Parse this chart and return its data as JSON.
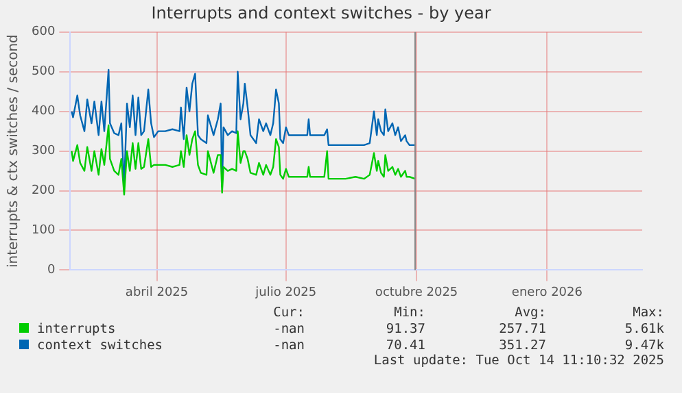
{
  "chart_data": {
    "type": "line",
    "title": "Interrupts and context switches - by year",
    "ylabel": "interrupts & ctx switches / second",
    "x": [
      "2025-02-14",
      "2025-02-15",
      "2025-02-18",
      "2025-02-20",
      "2025-02-23",
      "2025-02-25",
      "2025-02-28",
      "2025-03-02",
      "2025-03-05",
      "2025-03-07",
      "2025-03-09",
      "2025-03-12",
      "2025-03-13",
      "2025-03-16",
      "2025-03-19",
      "2025-03-21",
      "2025-03-23",
      "2025-03-25",
      "2025-03-27",
      "2025-03-29",
      "2025-03-31",
      "2025-04-02",
      "2025-04-04",
      "2025-04-06",
      "2025-04-09",
      "2025-04-11",
      "2025-04-13",
      "2025-04-16",
      "2025-04-21",
      "2025-04-26",
      "2025-05-01",
      "2025-05-02",
      "2025-05-04",
      "2025-05-06",
      "2025-05-08",
      "2025-05-10",
      "2025-05-12",
      "2025-05-14",
      "2025-05-16",
      "2025-05-20",
      "2025-05-21",
      "2025-05-25",
      "2025-05-28",
      "2025-05-30",
      "2025-05-31",
      "2025-06-01",
      "2025-06-04",
      "2025-06-07",
      "2025-06-10",
      "2025-06-11",
      "2025-06-13",
      "2025-06-15",
      "2025-06-16",
      "2025-06-18",
      "2025-06-20",
      "2025-06-24",
      "2025-06-26",
      "2025-06-29",
      "2025-07-01",
      "2025-07-04",
      "2025-07-06",
      "2025-07-08",
      "2025-07-10",
      "2025-07-11",
      "2025-07-13",
      "2025-07-15",
      "2025-07-17",
      "2025-07-24",
      "2025-07-30",
      "2025-07-31",
      "2025-08-01",
      "2025-08-11",
      "2025-08-13",
      "2025-08-14",
      "2025-08-26",
      "2025-09-02",
      "2025-09-08",
      "2025-09-12",
      "2025-09-15",
      "2025-09-17",
      "2025-09-18",
      "2025-09-20",
      "2025-09-22",
      "2025-09-23",
      "2025-09-25",
      "2025-09-28",
      "2025-09-30",
      "2025-10-02",
      "2025-10-04",
      "2025-10-07",
      "2025-10-08",
      "2025-10-10",
      "2025-10-14"
    ],
    "series": [
      {
        "name": "interrupts",
        "color": "#00cc00",
        "values": [
          300,
          275,
          315,
          270,
          250,
          310,
          250,
          300,
          240,
          305,
          265,
          365,
          280,
          250,
          240,
          280,
          190,
          300,
          250,
          320,
          255,
          320,
          255,
          260,
          330,
          260,
          265,
          265,
          265,
          260,
          265,
          300,
          260,
          340,
          290,
          330,
          350,
          265,
          245,
          240,
          300,
          245,
          290,
          290,
          195,
          260,
          250,
          255,
          250,
          350,
          270,
          300,
          300,
          280,
          245,
          240,
          270,
          240,
          265,
          240,
          260,
          330,
          310,
          240,
          230,
          255,
          235,
          235,
          235,
          260,
          235,
          235,
          300,
          230,
          230,
          235,
          230,
          240,
          295,
          250,
          275,
          245,
          235,
          290,
          250,
          260,
          240,
          255,
          235,
          250,
          235,
          235,
          230
        ]
      },
      {
        "name": "context switches",
        "color": "#0066b3",
        "values": [
          400,
          385,
          440,
          390,
          350,
          430,
          370,
          425,
          340,
          425,
          350,
          505,
          370,
          345,
          340,
          370,
          210,
          420,
          360,
          440,
          340,
          435,
          340,
          350,
          455,
          370,
          335,
          350,
          350,
          355,
          350,
          410,
          330,
          460,
          400,
          470,
          495,
          340,
          330,
          320,
          390,
          340,
          380,
          420,
          210,
          360,
          340,
          350,
          345,
          500,
          380,
          420,
          470,
          410,
          340,
          320,
          380,
          350,
          370,
          340,
          370,
          455,
          420,
          330,
          320,
          360,
          340,
          340,
          340,
          380,
          340,
          340,
          355,
          315,
          315,
          315,
          315,
          320,
          400,
          340,
          380,
          350,
          340,
          405,
          350,
          370,
          340,
          360,
          325,
          340,
          325,
          315,
          315
        ]
      }
    ],
    "xlim": [
      "2025-02-13",
      "2026-03-23"
    ],
    "xticks": [
      {
        "value": "2025-04-15",
        "label": "abril 2025"
      },
      {
        "value": "2025-07-15",
        "label": "julio 2025"
      },
      {
        "value": "2025-10-15",
        "label": "octubre 2025"
      },
      {
        "value": "2026-01-15",
        "label": "enero 2026"
      }
    ],
    "ylim": [
      0,
      600
    ],
    "yticks": [
      0,
      100,
      200,
      300,
      400,
      500,
      600
    ],
    "grid": true,
    "legend": "bottom",
    "ref_lines": [
      {
        "axis": "x",
        "value": "2025-10-14",
        "color": "#888888"
      }
    ],
    "annotations": [
      "Cur:",
      "Min:",
      "Avg:",
      "Max:",
      "-nan",
      "91.37",
      "257.71",
      "5.61k",
      "-nan",
      "70.41",
      "351.27",
      "9.47k",
      "Last update: Tue Oct 14 11:10:32 2025"
    ]
  }
}
